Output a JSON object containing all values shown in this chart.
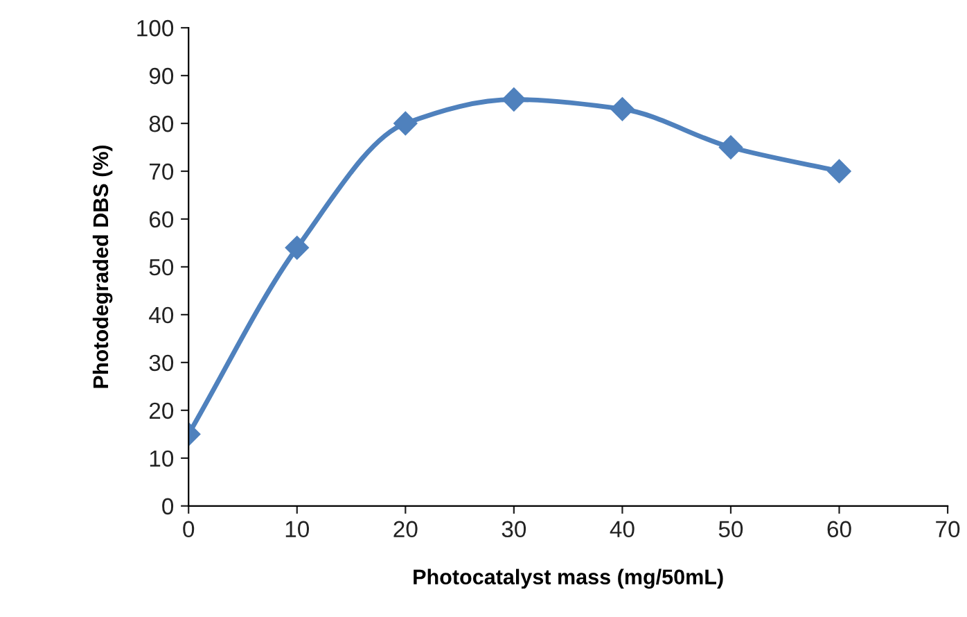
{
  "chart_data": {
    "type": "line",
    "xlabel": "Photocatalyst mass (mg/50mL)",
    "ylabel": "Photodegraded DBS (%)",
    "x": [
      0,
      10,
      20,
      30,
      40,
      50,
      60
    ],
    "series": [
      {
        "color": "#4f81bd",
        "values": [
          15,
          54,
          80,
          85,
          83,
          75,
          70
        ]
      }
    ],
    "xlim": [
      0,
      70
    ],
    "xticks": [
      0,
      10,
      20,
      30,
      40,
      50,
      60,
      70
    ],
    "ylim": [
      0,
      100
    ],
    "yticks": [
      0,
      10,
      20,
      30,
      40,
      50,
      60,
      70,
      80,
      90,
      100
    ],
    "grid": false,
    "legend": false,
    "marker": "diamond",
    "line_style": "solid"
  }
}
